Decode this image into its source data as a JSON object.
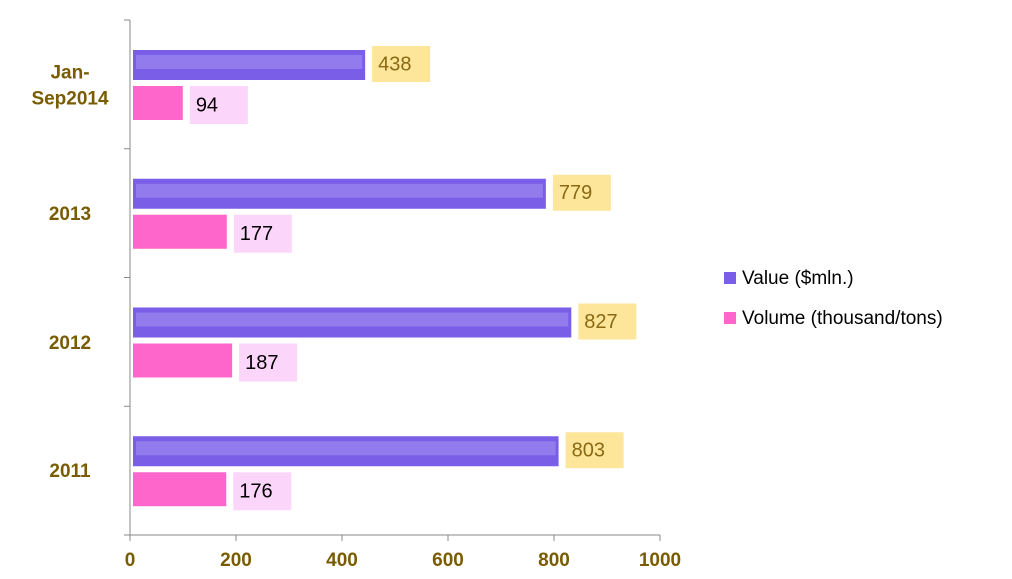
{
  "chart_data": {
    "type": "bar",
    "orientation": "horizontal",
    "categories": [
      "Jan-Sep2014",
      "2013",
      "2012",
      "2011"
    ],
    "series": [
      {
        "name": "Value ($mln.)",
        "color": "#7b5ee8",
        "values": [
          438,
          779,
          827,
          803
        ]
      },
      {
        "name": "Volume (thousand/tons)",
        "color": "#ff66cc",
        "values": [
          94,
          177,
          187,
          176
        ]
      }
    ],
    "xlim": [
      0,
      1000
    ],
    "xticks": [
      0,
      200,
      400,
      600,
      800,
      1000
    ],
    "legend": "right"
  }
}
